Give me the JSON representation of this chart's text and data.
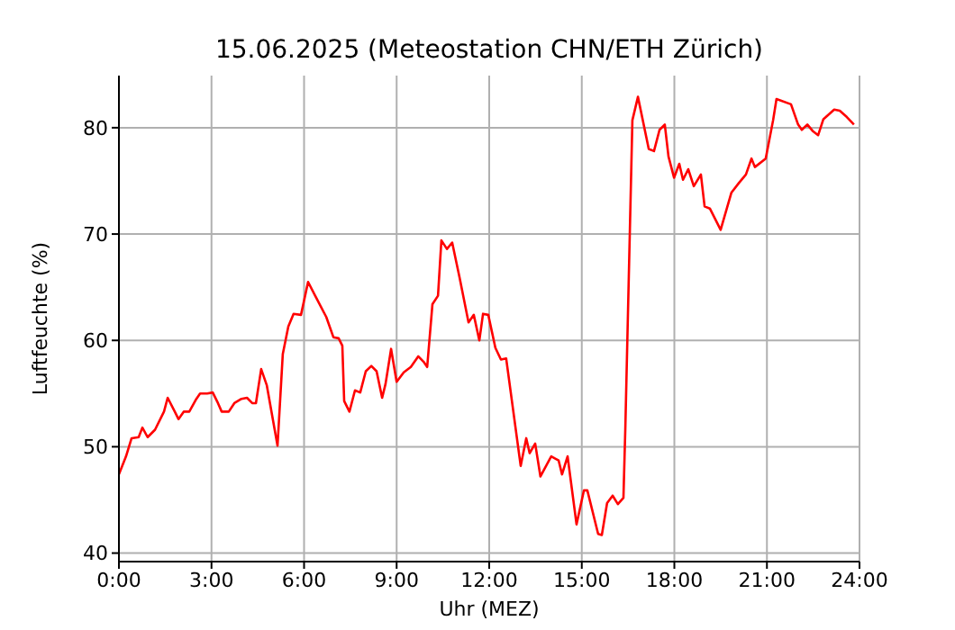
{
  "chart_data": {
    "type": "line",
    "title": "15.06.2025  (Meteostation CHN/ETH Zürich)",
    "xlabel": "Uhr (MEZ)",
    "ylabel": "Luftfeuchte (%)",
    "x": [
      0,
      0.23,
      0.41,
      0.64,
      0.76,
      0.93,
      1.17,
      1.46,
      1.58,
      1.81,
      1.93,
      2.1,
      2.28,
      2.51,
      2.63,
      2.86,
      3.04,
      3.21,
      3.33,
      3.56,
      3.74,
      3.97,
      4.15,
      4.32,
      4.44,
      4.61,
      4.79,
      5.14,
      5.31,
      5.49,
      5.66,
      5.9,
      6.13,
      6.36,
      6.72,
      6.95,
      7.12,
      7.24,
      7.3,
      7.47,
      7.65,
      7.82,
      8.0,
      8.18,
      8.35,
      8.53,
      8.64,
      8.82,
      9.0,
      9.23,
      9.46,
      9.7,
      9.87,
      9.99,
      10.16,
      10.34,
      10.45,
      10.63,
      10.8,
      11.04,
      11.33,
      11.5,
      11.68,
      11.8,
      11.97,
      12.2,
      12.38,
      12.55,
      13.02,
      13.2,
      13.31,
      13.49,
      13.66,
      14.01,
      14.25,
      14.36,
      14.54,
      14.83,
      15.07,
      15.18,
      15.53,
      15.65,
      15.82,
      16.0,
      16.17,
      16.35,
      16.41,
      16.64,
      16.82,
      17.17,
      17.34,
      17.52,
      17.69,
      17.81,
      17.99,
      18.16,
      18.28,
      18.45,
      18.63,
      18.86,
      18.98,
      19.15,
      19.5,
      19.85,
      20.09,
      20.32,
      20.5,
      20.61,
      20.96,
      21.2,
      21.31,
      21.78,
      22.01,
      22.13,
      22.31,
      22.48,
      22.66,
      22.83,
      23.18,
      23.36,
      23.59,
      23.82
    ],
    "series": [
      {
        "color": "#ff0000",
        "values": [
          47.4,
          49.1,
          50.8,
          50.9,
          51.8,
          50.9,
          51.6,
          53.3,
          54.6,
          53.3,
          52.6,
          53.3,
          53.3,
          54.5,
          55.0,
          55.0,
          55.1,
          54.1,
          53.3,
          53.3,
          54.1,
          54.5,
          54.6,
          54.1,
          54.1,
          57.3,
          55.8,
          50.1,
          58.7,
          61.3,
          62.5,
          62.4,
          65.5,
          64.2,
          62.2,
          60.3,
          60.2,
          59.5,
          54.3,
          53.3,
          55.3,
          55.1,
          57.1,
          57.6,
          57.1,
          54.6,
          55.9,
          59.2,
          56.1,
          57.0,
          57.5,
          58.5,
          58.0,
          57.5,
          63.4,
          64.2,
          69.4,
          68.6,
          69.2,
          65.9,
          61.7,
          62.4,
          60.0,
          62.5,
          62.4,
          59.3,
          58.2,
          58.3,
          48.2,
          50.8,
          49.4,
          50.3,
          47.2,
          49.1,
          48.7,
          47.4,
          49.1,
          42.7,
          45.9,
          45.9,
          41.8,
          41.7,
          44.7,
          45.4,
          44.6,
          45.2,
          51.6,
          80.7,
          82.9,
          78.0,
          77.8,
          79.8,
          80.3,
          77.3,
          75.3,
          76.6,
          75.1,
          76.1,
          74.5,
          75.6,
          72.6,
          72.4,
          70.4,
          73.9,
          74.8,
          75.6,
          77.1,
          76.3,
          77.1,
          80.7,
          82.7,
          82.2,
          80.3,
          79.8,
          80.3,
          79.7,
          79.3,
          80.8,
          81.7,
          81.6,
          81.0,
          80.3
        ]
      }
    ],
    "xlim": [
      0,
      24
    ],
    "xticks": [
      {
        "value": 0,
        "label": "0:00"
      },
      {
        "value": 3,
        "label": "3:00"
      },
      {
        "value": 6,
        "label": "6:00"
      },
      {
        "value": 9,
        "label": "9:00"
      },
      {
        "value": 12,
        "label": "12:00"
      },
      {
        "value": 15,
        "label": "15:00"
      },
      {
        "value": 18,
        "label": "18:00"
      },
      {
        "value": 21,
        "label": "21:00"
      },
      {
        "value": 24,
        "label": "24:00"
      }
    ],
    "ylim": [
      39.2,
      84.9
    ],
    "yticks": [
      40,
      50,
      60,
      70,
      80
    ],
    "grid": true,
    "marker": "none",
    "line_style": "solid"
  }
}
